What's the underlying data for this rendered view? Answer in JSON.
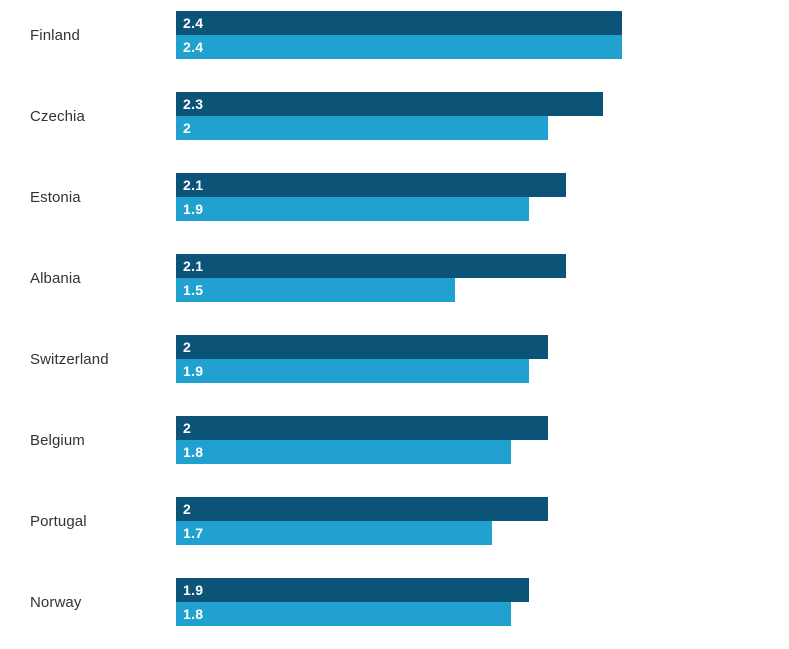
{
  "chart_data": {
    "type": "bar",
    "orientation": "horizontal",
    "title": "",
    "xlabel": "",
    "ylabel": "",
    "xlim": [
      0,
      2.4
    ],
    "axis": "hidden",
    "grid": false,
    "legend": "none",
    "value_labels": "inside-start",
    "label_color": "#333333",
    "value_label_color": "#ffffff",
    "categories": [
      "Finland",
      "Czechia",
      "Estonia",
      "Albania",
      "Switzerland",
      "Belgium",
      "Portugal",
      "Norway"
    ],
    "series": [
      {
        "name": "top-bar",
        "color": "#0b5477",
        "values": [
          2.4,
          2.3,
          2.1,
          2.1,
          2.0,
          2.0,
          2.0,
          1.9
        ],
        "labels": [
          "2.4",
          "2.3",
          "2.1",
          "2.1",
          "2",
          "2",
          "2",
          "1.9"
        ]
      },
      {
        "name": "bottom-bar",
        "color": "#21a1cf",
        "values": [
          2.4,
          2.0,
          1.9,
          1.5,
          1.9,
          1.8,
          1.7,
          1.8
        ],
        "labels": [
          "2.4",
          "2",
          "1.9",
          "1.5",
          "1.9",
          "1.8",
          "1.7",
          "1.8"
        ]
      }
    ]
  }
}
